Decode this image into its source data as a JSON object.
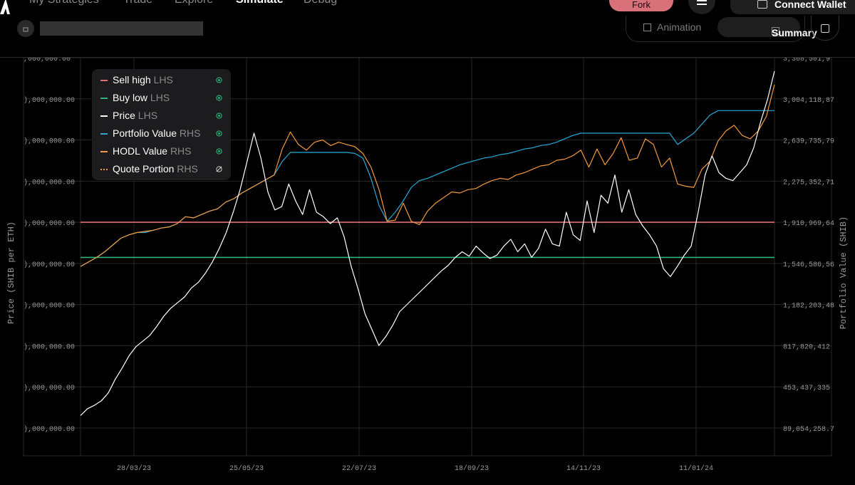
{
  "nav": {
    "items": [
      "My Strategies",
      "Trade",
      "Explore",
      "Simulate",
      "Debug"
    ],
    "active_index": 3,
    "fork_label": "Fork",
    "connect_wallet_label": "Connect Wallet"
  },
  "toolbar": {
    "animation_label": "Animation",
    "summary_label": "Summary"
  },
  "colors": {
    "sell_high": "#e06c75",
    "buy_low": "#2fb37b",
    "price": "#ffffff",
    "portfolio_value": "#29a8d6",
    "hodl_value": "#f19a3e",
    "quote_portion": "#f19a3e",
    "eye_icon": "#2fb37b"
  },
  "chart_data": {
    "type": "line",
    "x_ticks": [
      "28/03/23",
      "25/05/23",
      "22/07/23",
      "18/09/23",
      "14/11/23",
      "11/01/24"
    ],
    "ylabel_left": "Price (SHIB per ETH)",
    "ylabel_right": "Portfolio Value (SHIB)",
    "y_left_ticks": [
      ",000,000.00",
      "),000,000.00",
      "),000,000.00",
      "),000,000.00",
      "),000,000.00",
      "),000,000.00",
      "),000,000.00",
      "),000,000.00",
      "),000,000.00",
      "),000,000.00"
    ],
    "y_right_ticks": [
      "3,368,501,9",
      "3,004,118,87",
      "2,639,735,79",
      "2,275,352,71",
      "1,910,969,64",
      "1,546,586,56",
      "1,182,203,48",
      "817,820,412",
      "453,437,335",
      "89,054,258.7"
    ],
    "y_right_values": [
      3368501900,
      3004118870,
      2639735790,
      2275352710,
      1910969640,
      1546586560,
      1182203480,
      817820412,
      453437335,
      89054258.7
    ],
    "y_right_range": [
      89054258.7,
      3368501900
    ],
    "legend_position": "top-left",
    "legend": [
      {
        "name": "Sell high",
        "side": "LHS",
        "visible": true
      },
      {
        "name": "Buy low",
        "side": "LHS",
        "visible": true
      },
      {
        "name": "Price",
        "side": "LHS",
        "visible": true
      },
      {
        "name": "Portfolio Value",
        "side": "RHS",
        "visible": true
      },
      {
        "name": "HODL Value",
        "side": "RHS",
        "visible": true
      },
      {
        "name": "Quote Portion",
        "side": "RHS",
        "visible": false
      }
    ],
    "horizontal_lines": {
      "sell_high_rhs": 1910969640,
      "buy_low_rhs": 1600000000
    },
    "series": [
      {
        "name": "Price",
        "axis": "right",
        "y": [
          200000000,
          260000000,
          290000000,
          330000000,
          400000000,
          520000000,
          620000000,
          730000000,
          810000000,
          860000000,
          910000000,
          990000000,
          1080000000,
          1150000000,
          1200000000,
          1250000000,
          1330000000,
          1380000000,
          1460000000,
          1560000000,
          1680000000,
          1820000000,
          2000000000,
          2200000000,
          2450000000,
          2700000000,
          2480000000,
          2180000000,
          2020000000,
          2050000000,
          2250000000,
          2100000000,
          1980000000,
          2200000000,
          2000000000,
          1960000000,
          1900000000,
          1950000000,
          1780000000,
          1520000000,
          1320000000,
          1100000000,
          960000000,
          820000000,
          900000000,
          1000000000,
          1120000000,
          1180000000,
          1240000000,
          1300000000,
          1360000000,
          1420000000,
          1480000000,
          1530000000,
          1600000000,
          1650000000,
          1610000000,
          1700000000,
          1640000000,
          1590000000,
          1620000000,
          1700000000,
          1760000000,
          1650000000,
          1720000000,
          1600000000,
          1680000000,
          1850000000,
          1720000000,
          1700000000,
          2000000000,
          1800000000,
          1750000000,
          2100000000,
          1820000000,
          2150000000,
          2080000000,
          2330000000,
          2000000000,
          2200000000,
          1980000000,
          1880000000,
          1800000000,
          1700000000,
          1500000000,
          1430000000,
          1520000000,
          1620000000,
          1700000000,
          2000000000,
          2330000000,
          2500000000,
          2350000000,
          2300000000,
          2280000000,
          2350000000,
          2420000000,
          2570000000,
          2800000000,
          3000000000,
          3250000000
        ]
      },
      {
        "name": "Portfolio Value",
        "axis": "right",
        "y": [
          1520000000,
          1560000000,
          1600000000,
          1650000000,
          1710000000,
          1770000000,
          1800000000,
          1820000000,
          1820000000,
          1840000000,
          1860000000,
          1870000000,
          1900000000,
          1960000000,
          1950000000,
          1980000000,
          2010000000,
          2030000000,
          2090000000,
          2120000000,
          2170000000,
          2210000000,
          2250000000,
          2290000000,
          2330000000,
          2450000000,
          2530000000,
          2530000000,
          2530000000,
          2530000000,
          2530000000,
          2530000000,
          2530000000,
          2530000000,
          2520000000,
          2480000000,
          2300000000,
          2060000000,
          1920000000,
          2000000000,
          2100000000,
          2220000000,
          2280000000,
          2300000000,
          2330000000,
          2360000000,
          2390000000,
          2420000000,
          2440000000,
          2460000000,
          2480000000,
          2490000000,
          2510000000,
          2520000000,
          2540000000,
          2560000000,
          2570000000,
          2590000000,
          2600000000,
          2620000000,
          2650000000,
          2680000000,
          2700000000,
          2700000000,
          2700000000,
          2700000000,
          2700000000,
          2700000000,
          2700000000,
          2700000000,
          2700000000,
          2700000000,
          2700000000,
          2700000000,
          2600000000,
          2650000000,
          2700000000,
          2780000000,
          2860000000,
          2900000000,
          2900000000,
          2900000000,
          2900000000,
          2900000000,
          2900000000,
          2900000000,
          2900000000
        ]
      },
      {
        "name": "HODL Value",
        "axis": "right",
        "y": [
          1520000000,
          1560000000,
          1600000000,
          1650000000,
          1710000000,
          1770000000,
          1800000000,
          1820000000,
          1830000000,
          1840000000,
          1860000000,
          1870000000,
          1900000000,
          1960000000,
          1950000000,
          1980000000,
          2010000000,
          2030000000,
          2090000000,
          2120000000,
          2170000000,
          2210000000,
          2250000000,
          2290000000,
          2330000000,
          2560000000,
          2710000000,
          2600000000,
          2550000000,
          2620000000,
          2640000000,
          2590000000,
          2620000000,
          2600000000,
          2580000000,
          2520000000,
          2400000000,
          2200000000,
          1920000000,
          1930000000,
          2080000000,
          1920000000,
          1890000000,
          2010000000,
          2080000000,
          2130000000,
          2180000000,
          2170000000,
          2200000000,
          2210000000,
          2250000000,
          2280000000,
          2300000000,
          2290000000,
          2330000000,
          2350000000,
          2380000000,
          2410000000,
          2420000000,
          2460000000,
          2470000000,
          2500000000,
          2550000000,
          2400000000,
          2560000000,
          2420000000,
          2520000000,
          2660000000,
          2460000000,
          2480000000,
          2650000000,
          2600000000,
          2400000000,
          2480000000,
          2250000000,
          2230000000,
          2220000000,
          2380000000,
          2450000000,
          2630000000,
          2720000000,
          2770000000,
          2680000000,
          2650000000,
          2720000000,
          2850000000,
          3130000000
        ]
      }
    ]
  }
}
